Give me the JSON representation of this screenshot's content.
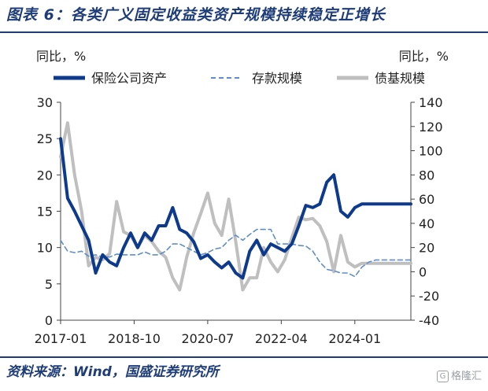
{
  "title": "图表 6：各类广义固定收益类资产规模持续稳定正增长",
  "source": "资料来源：Wind，国盛证券研究所",
  "watermark": "格隆汇",
  "colors": {
    "brand": "#1d3c78",
    "insurance": "#0d3a8c",
    "deposit": "#5f8dc9",
    "bond_fund": "#bfbfbf"
  },
  "chart_data": {
    "type": "line",
    "y_left_label": "同比，%",
    "y_right_label": "同比，%",
    "y_left_ticks": [
      0,
      5,
      10,
      15,
      20,
      25,
      30
    ],
    "y_right_ticks": [
      -40,
      -20,
      0,
      20,
      40,
      60,
      80,
      100,
      120,
      140
    ],
    "x_ticks": [
      "2017-01",
      "2018-10",
      "2020-07",
      "2022-04",
      "2024-01"
    ],
    "legend_position": "top",
    "grid": false,
    "series": [
      {
        "name": "保险公司资产",
        "axis": "left",
        "style": "solid",
        "color": "#0d3a8c",
        "x": [
          "2017-01",
          "2017-03",
          "2017-05",
          "2017-07",
          "2017-09",
          "2017-11",
          "2018-01",
          "2018-03",
          "2018-05",
          "2018-07",
          "2018-09",
          "2018-11",
          "2019-01",
          "2019-03",
          "2019-05",
          "2019-07",
          "2019-09",
          "2019-11",
          "2020-01",
          "2020-03",
          "2020-05",
          "2020-07",
          "2020-09",
          "2020-11",
          "2021-01",
          "2021-03",
          "2021-05",
          "2021-07",
          "2021-09",
          "2021-11",
          "2022-01",
          "2022-03",
          "2022-05",
          "2022-07",
          "2022-09",
          "2022-11",
          "2023-01",
          "2023-03",
          "2023-05",
          "2023-07",
          "2023-09",
          "2023-11",
          "2024-01",
          "2024-03",
          "2024-05",
          "2024-07",
          "2024-09",
          "2024-11",
          "2025-01",
          "2025-03",
          "2025-05"
        ],
        "values": [
          25,
          16.8,
          15,
          13,
          11,
          6.5,
          9,
          8,
          7.5,
          10,
          12,
          10,
          12,
          11,
          13,
          13,
          15.5,
          12.5,
          12,
          10.8,
          8.5,
          9,
          8,
          7.2,
          8,
          6.5,
          5.8,
          9.5,
          11,
          9,
          10.5,
          10,
          9.5,
          10.5,
          13,
          15.8,
          15.5,
          16,
          19,
          20,
          15,
          14.2,
          15.5,
          16,
          16,
          16,
          16,
          16,
          16,
          16,
          16
        ]
      },
      {
        "name": "存款规模",
        "axis": "left",
        "style": "dashed",
        "color": "#5f8dc9",
        "x": [
          "2017-01",
          "2017-03",
          "2017-05",
          "2017-07",
          "2017-09",
          "2017-11",
          "2018-01",
          "2018-03",
          "2018-05",
          "2018-07",
          "2018-09",
          "2018-11",
          "2019-01",
          "2019-03",
          "2019-05",
          "2019-07",
          "2019-09",
          "2019-11",
          "2020-01",
          "2020-03",
          "2020-05",
          "2020-07",
          "2020-09",
          "2020-11",
          "2021-01",
          "2021-03",
          "2021-05",
          "2021-07",
          "2021-09",
          "2021-11",
          "2022-01",
          "2022-03",
          "2022-05",
          "2022-07",
          "2022-09",
          "2022-11",
          "2023-01",
          "2023-03",
          "2023-05",
          "2023-07",
          "2023-09",
          "2023-11",
          "2024-01",
          "2024-03",
          "2024-05",
          "2024-07",
          "2024-09",
          "2024-11",
          "2025-01",
          "2025-03",
          "2025-05"
        ],
        "values": [
          11,
          9.5,
          9.3,
          9.5,
          8.8,
          9,
          8.7,
          8.7,
          9.1,
          9,
          9,
          9,
          9.4,
          9,
          9,
          9.5,
          10.5,
          10.5,
          10,
          9.5,
          9,
          9.3,
          9.8,
          10,
          11,
          11.7,
          11,
          11.8,
          12.5,
          12.5,
          12.5,
          10.5,
          10.5,
          10.5,
          10.3,
          10.2,
          9.5,
          8,
          7,
          6.8,
          6.5,
          6.5,
          6,
          7.3,
          8,
          8.3,
          8.3,
          8.3,
          8.3,
          8.3,
          8.3
        ]
      },
      {
        "name": "债基规模",
        "axis": "right",
        "style": "solid",
        "color": "#bfbfbf",
        "x": [
          "2017-01",
          "2017-03",
          "2017-05",
          "2017-07",
          "2017-09",
          "2017-11",
          "2018-01",
          "2018-03",
          "2018-05",
          "2018-07",
          "2018-09",
          "2018-11",
          "2019-01",
          "2019-03",
          "2019-05",
          "2019-07",
          "2019-09",
          "2019-11",
          "2020-01",
          "2020-03",
          "2020-05",
          "2020-07",
          "2020-09",
          "2020-11",
          "2021-01",
          "2021-03",
          "2021-05",
          "2021-07",
          "2021-09",
          "2021-11",
          "2022-01",
          "2022-03",
          "2022-05",
          "2022-07",
          "2022-09",
          "2022-11",
          "2023-01",
          "2023-03",
          "2023-05",
          "2023-07",
          "2023-09",
          "2023-11",
          "2024-01",
          "2024-03",
          "2024-05",
          "2024-07",
          "2024-09",
          "2024-11",
          "2025-01",
          "2025-03",
          "2025-05"
        ],
        "values": [
          95,
          123,
          80,
          50,
          5,
          12,
          10,
          15,
          58,
          33,
          30,
          20,
          30,
          25,
          17,
          12,
          -5,
          -15,
          12,
          32,
          48,
          65,
          40,
          30,
          60,
          25,
          -15,
          -5,
          -5,
          20,
          8,
          0,
          10,
          28,
          45,
          43,
          44,
          38,
          25,
          0,
          30,
          8,
          4,
          7,
          7,
          7,
          7,
          7,
          7,
          7,
          7
        ]
      }
    ]
  }
}
